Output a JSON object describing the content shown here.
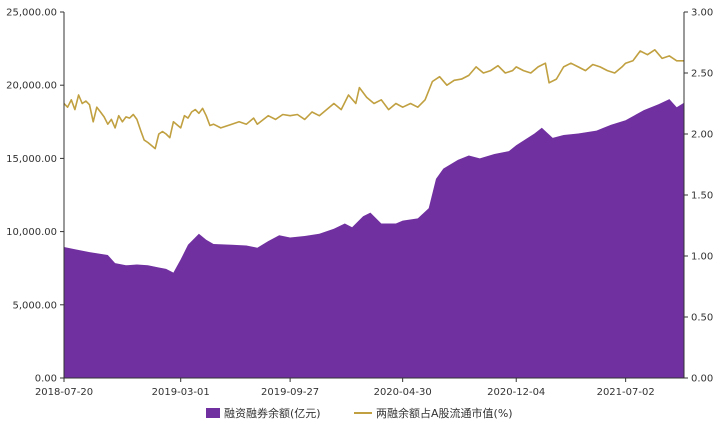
{
  "chart_data": {
    "type": "area+line",
    "x_ticks": [
      "2018-07-20",
      "2019-03-01",
      "2019-09-27",
      "2020-04-30",
      "2020-12-04",
      "2021-07-02"
    ],
    "x_range": [
      "2018-07-20",
      "2021-10-22"
    ],
    "y_left": {
      "ticks": [
        "0.00",
        "5,000.00",
        "10,000.00",
        "15,000.00",
        "20,000.00",
        "25,000.00"
      ],
      "range": [
        0,
        25000
      ]
    },
    "y_right": {
      "ticks": [
        "0.00",
        "0.50",
        "1.00",
        "1.50",
        "2.00",
        "2.50",
        "3.00"
      ],
      "range": [
        0,
        3
      ]
    },
    "legend_position": "bottom",
    "series": [
      {
        "name": "融资融券余额(亿元)",
        "kind": "area",
        "axis": "left",
        "color": "#7030A0",
        "points": [
          [
            "2018-07-20",
            8950
          ],
          [
            "2018-08-10",
            8800
          ],
          [
            "2018-09-07",
            8600
          ],
          [
            "2018-10-12",
            8400
          ],
          [
            "2018-10-26",
            7850
          ],
          [
            "2018-11-16",
            7700
          ],
          [
            "2018-12-07",
            7750
          ],
          [
            "2018-12-28",
            7700
          ],
          [
            "2019-01-18",
            7550
          ],
          [
            "2019-02-01",
            7450
          ],
          [
            "2019-02-15",
            7200
          ],
          [
            "2019-03-01",
            8100
          ],
          [
            "2019-03-15",
            9100
          ],
          [
            "2019-04-05",
            9850
          ],
          [
            "2019-04-19",
            9450
          ],
          [
            "2019-05-03",
            9150
          ],
          [
            "2019-06-07",
            9100
          ],
          [
            "2019-07-05",
            9050
          ],
          [
            "2019-07-26",
            8900
          ],
          [
            "2019-08-16",
            9350
          ],
          [
            "2019-09-06",
            9750
          ],
          [
            "2019-09-27",
            9600
          ],
          [
            "2019-10-25",
            9700
          ],
          [
            "2019-11-22",
            9850
          ],
          [
            "2019-12-20",
            10200
          ],
          [
            "2020-01-10",
            10550
          ],
          [
            "2020-01-24",
            10300
          ],
          [
            "2020-02-14",
            11050
          ],
          [
            "2020-02-28",
            11300
          ],
          [
            "2020-03-20",
            10550
          ],
          [
            "2020-04-17",
            10550
          ],
          [
            "2020-04-30",
            10750
          ],
          [
            "2020-05-29",
            10900
          ],
          [
            "2020-06-19",
            11600
          ],
          [
            "2020-07-03",
            13600
          ],
          [
            "2020-07-17",
            14300
          ],
          [
            "2020-08-14",
            14900
          ],
          [
            "2020-09-04",
            15200
          ],
          [
            "2020-09-25",
            15000
          ],
          [
            "2020-10-23",
            15300
          ],
          [
            "2020-11-20",
            15500
          ],
          [
            "2020-12-04",
            15900
          ],
          [
            "2021-01-08",
            16700
          ],
          [
            "2021-01-22",
            17100
          ],
          [
            "2021-02-12",
            16400
          ],
          [
            "2021-03-05",
            16600
          ],
          [
            "2021-04-02",
            16700
          ],
          [
            "2021-05-07",
            16900
          ],
          [
            "2021-06-04",
            17300
          ],
          [
            "2021-07-02",
            17600
          ],
          [
            "2021-08-06",
            18300
          ],
          [
            "2021-09-03",
            18700
          ],
          [
            "2021-09-24",
            19050
          ],
          [
            "2021-10-08",
            18500
          ],
          [
            "2021-10-22",
            18800
          ]
        ]
      },
      {
        "name": "两融余额占A股流通市值(%)",
        "kind": "line",
        "axis": "right",
        "color": "#C0A040",
        "points": [
          [
            "2018-07-20",
            2.25
          ],
          [
            "2018-07-27",
            2.22
          ],
          [
            "2018-08-03",
            2.28
          ],
          [
            "2018-08-10",
            2.2
          ],
          [
            "2018-08-17",
            2.32
          ],
          [
            "2018-08-24",
            2.25
          ],
          [
            "2018-08-31",
            2.27
          ],
          [
            "2018-09-07",
            2.24
          ],
          [
            "2018-09-14",
            2.1
          ],
          [
            "2018-09-21",
            2.22
          ],
          [
            "2018-09-28",
            2.18
          ],
          [
            "2018-10-05",
            2.14
          ],
          [
            "2018-10-12",
            2.08
          ],
          [
            "2018-10-19",
            2.12
          ],
          [
            "2018-10-26",
            2.05
          ],
          [
            "2018-11-02",
            2.15
          ],
          [
            "2018-11-09",
            2.1
          ],
          [
            "2018-11-16",
            2.14
          ],
          [
            "2018-11-23",
            2.13
          ],
          [
            "2018-11-30",
            2.16
          ],
          [
            "2018-12-07",
            2.12
          ],
          [
            "2018-12-14",
            2.03
          ],
          [
            "2018-12-21",
            1.95
          ],
          [
            "2018-12-28",
            1.93
          ],
          [
            "2019-01-11",
            1.88
          ],
          [
            "2019-01-18",
            2.0
          ],
          [
            "2019-01-25",
            2.02
          ],
          [
            "2019-02-01",
            2.0
          ],
          [
            "2019-02-08",
            1.97
          ],
          [
            "2019-02-15",
            2.1
          ],
          [
            "2019-03-01",
            2.05
          ],
          [
            "2019-03-08",
            2.15
          ],
          [
            "2019-03-15",
            2.13
          ],
          [
            "2019-03-22",
            2.18
          ],
          [
            "2019-03-29",
            2.2
          ],
          [
            "2019-04-05",
            2.17
          ],
          [
            "2019-04-12",
            2.21
          ],
          [
            "2019-04-19",
            2.15
          ],
          [
            "2019-04-26",
            2.07
          ],
          [
            "2019-05-03",
            2.08
          ],
          [
            "2019-05-17",
            2.05
          ],
          [
            "2019-06-07",
            2.08
          ],
          [
            "2019-06-21",
            2.1
          ],
          [
            "2019-07-05",
            2.08
          ],
          [
            "2019-07-19",
            2.13
          ],
          [
            "2019-07-26",
            2.08
          ],
          [
            "2019-08-16",
            2.15
          ],
          [
            "2019-08-30",
            2.12
          ],
          [
            "2019-09-13",
            2.16
          ],
          [
            "2019-09-27",
            2.15
          ],
          [
            "2019-10-11",
            2.16
          ],
          [
            "2019-10-25",
            2.12
          ],
          [
            "2019-11-08",
            2.18
          ],
          [
            "2019-11-22",
            2.15
          ],
          [
            "2019-12-06",
            2.2
          ],
          [
            "2019-12-20",
            2.25
          ],
          [
            "2020-01-03",
            2.2
          ],
          [
            "2020-01-17",
            2.32
          ],
          [
            "2020-01-31",
            2.25
          ],
          [
            "2020-02-07",
            2.38
          ],
          [
            "2020-02-21",
            2.3
          ],
          [
            "2020-03-06",
            2.25
          ],
          [
            "2020-03-20",
            2.28
          ],
          [
            "2020-04-03",
            2.2
          ],
          [
            "2020-04-17",
            2.25
          ],
          [
            "2020-04-30",
            2.22
          ],
          [
            "2020-05-15",
            2.25
          ],
          [
            "2020-05-29",
            2.22
          ],
          [
            "2020-06-12",
            2.28
          ],
          [
            "2020-06-26",
            2.43
          ],
          [
            "2020-07-10",
            2.47
          ],
          [
            "2020-07-24",
            2.4
          ],
          [
            "2020-08-07",
            2.44
          ],
          [
            "2020-08-21",
            2.45
          ],
          [
            "2020-09-04",
            2.48
          ],
          [
            "2020-09-18",
            2.55
          ],
          [
            "2020-10-02",
            2.5
          ],
          [
            "2020-10-16",
            2.52
          ],
          [
            "2020-10-30",
            2.56
          ],
          [
            "2020-11-13",
            2.5
          ],
          [
            "2020-11-27",
            2.52
          ],
          [
            "2020-12-04",
            2.55
          ],
          [
            "2020-12-18",
            2.52
          ],
          [
            "2021-01-01",
            2.5
          ],
          [
            "2021-01-15",
            2.55
          ],
          [
            "2021-01-29",
            2.58
          ],
          [
            "2021-02-05",
            2.42
          ],
          [
            "2021-02-19",
            2.45
          ],
          [
            "2021-03-05",
            2.55
          ],
          [
            "2021-03-19",
            2.58
          ],
          [
            "2021-04-02",
            2.55
          ],
          [
            "2021-04-16",
            2.52
          ],
          [
            "2021-04-30",
            2.57
          ],
          [
            "2021-05-14",
            2.55
          ],
          [
            "2021-05-28",
            2.52
          ],
          [
            "2021-06-11",
            2.5
          ],
          [
            "2021-06-25",
            2.55
          ],
          [
            "2021-07-02",
            2.58
          ],
          [
            "2021-07-16",
            2.6
          ],
          [
            "2021-07-30",
            2.68
          ],
          [
            "2021-08-13",
            2.65
          ],
          [
            "2021-08-27",
            2.69
          ],
          [
            "2021-09-10",
            2.62
          ],
          [
            "2021-09-24",
            2.64
          ],
          [
            "2021-10-08",
            2.6
          ],
          [
            "2021-10-22",
            2.6
          ]
        ]
      }
    ]
  }
}
